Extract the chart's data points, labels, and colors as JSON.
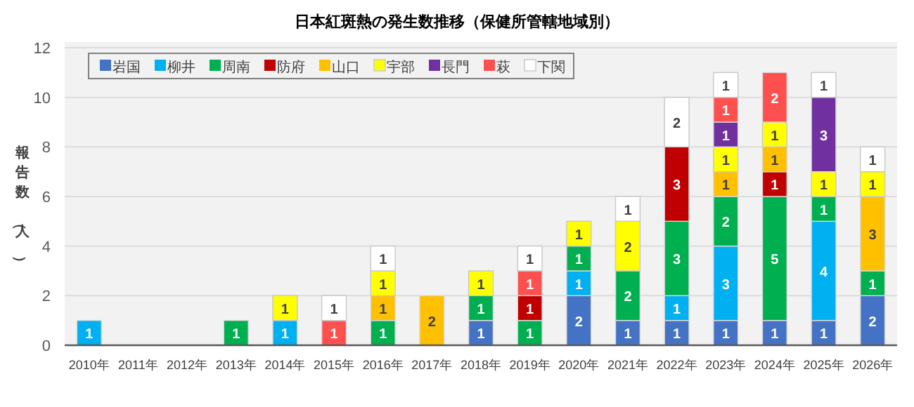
{
  "chart_data": {
    "type": "bar",
    "stacked": true,
    "title": "日本紅斑熱の発生数推移（保健所管轄地域別）",
    "ylabel": "報告数（人）",
    "categories": [
      "2010年",
      "2011年",
      "2012年",
      "2013年",
      "2014年",
      "2015年",
      "2016年",
      "2017年",
      "2018年",
      "2019年",
      "2020年",
      "2021年",
      "2022年",
      "2023年",
      "2024年",
      "2025年",
      "2026年"
    ],
    "ylim": [
      0,
      12
    ],
    "yticks": [
      0,
      2,
      4,
      6,
      8,
      10,
      12
    ],
    "grid": "y",
    "legend": "top left",
    "data_labels": true,
    "series": [
      {
        "name": "岩国",
        "color": "#4472c4",
        "values": [
          null,
          null,
          null,
          null,
          null,
          null,
          null,
          null,
          1,
          null,
          2,
          1,
          1,
          1,
          1,
          1,
          2
        ]
      },
      {
        "name": "柳井",
        "color": "#00b0f0",
        "values": [
          1,
          null,
          null,
          null,
          1,
          null,
          null,
          null,
          null,
          null,
          1,
          null,
          1,
          3,
          null,
          4,
          null
        ]
      },
      {
        "name": "周南",
        "color": "#00b050",
        "values": [
          null,
          null,
          null,
          1,
          null,
          null,
          1,
          null,
          1,
          1,
          1,
          2,
          3,
          2,
          5,
          1,
          1
        ]
      },
      {
        "name": "防府",
        "color": "#c00000",
        "values": [
          null,
          null,
          null,
          null,
          null,
          null,
          null,
          null,
          null,
          1,
          null,
          null,
          3,
          null,
          1,
          null,
          null
        ]
      },
      {
        "name": "山口",
        "color": "#ffc000",
        "values": [
          null,
          null,
          null,
          null,
          null,
          null,
          1,
          2,
          null,
          null,
          null,
          null,
          null,
          1,
          1,
          null,
          3
        ]
      },
      {
        "name": "宇部",
        "color": "#ffff00",
        "values": [
          null,
          null,
          null,
          null,
          1,
          null,
          1,
          null,
          1,
          null,
          1,
          2,
          null,
          1,
          1,
          1,
          1
        ]
      },
      {
        "name": "長門",
        "color": "#7030a0",
        "values": [
          null,
          null,
          null,
          null,
          null,
          null,
          null,
          null,
          null,
          null,
          null,
          null,
          null,
          1,
          null,
          3,
          null
        ]
      },
      {
        "name": "萩",
        "color": "#ff5050",
        "values": [
          null,
          null,
          null,
          null,
          null,
          1,
          null,
          null,
          null,
          1,
          null,
          null,
          null,
          1,
          2,
          null,
          null
        ]
      },
      {
        "name": "下関",
        "color": "#ffffff",
        "values": [
          null,
          null,
          null,
          null,
          null,
          1,
          1,
          null,
          null,
          1,
          null,
          1,
          2,
          1,
          null,
          1,
          1
        ]
      }
    ]
  }
}
